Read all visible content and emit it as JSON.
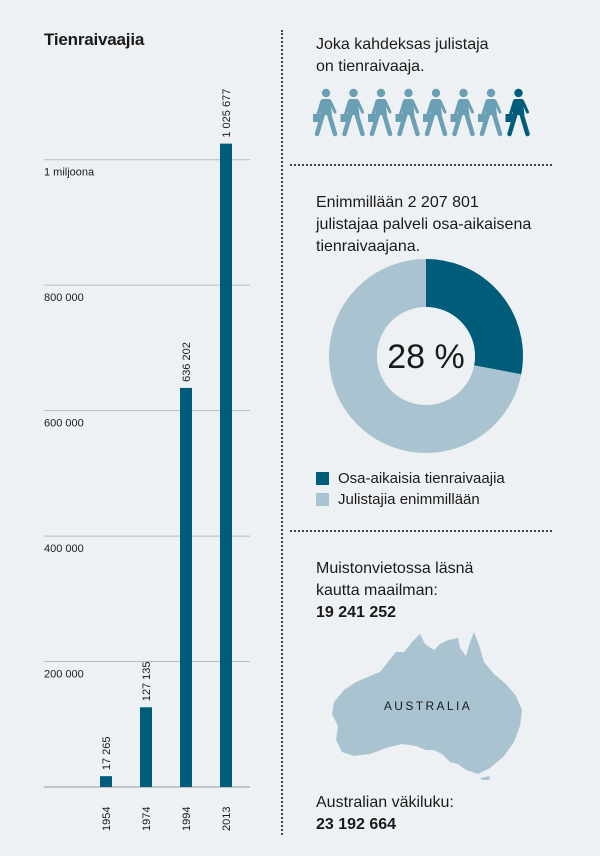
{
  "colors": {
    "bar": "#005d79",
    "part_time": "#005d79",
    "others": "#a9c4d0",
    "walker_light": "#6b9fb4",
    "walker_dark": "#005d79",
    "map": "#a9c4d0",
    "grid": "#b5bcc0"
  },
  "chart_data": {
    "type": "bar",
    "title": "Tienraivaajia",
    "categories": [
      "1954",
      "1974",
      "1994",
      "2013"
    ],
    "values": [
      17265,
      127135,
      636202,
      1025677
    ],
    "value_labels": [
      "17 265",
      "127 135",
      "636 202",
      "1 025 677"
    ],
    "ylim": [
      0,
      1100000
    ],
    "yticks": [
      200000,
      400000,
      600000,
      800000,
      1000000
    ],
    "ytick_labels": [
      "200 000",
      "400 000",
      "600 000",
      "800 000",
      "1 miljoona"
    ],
    "grid": true,
    "xlabel": "",
    "ylabel": ""
  },
  "pioneer_ratio": {
    "text_line1": "Joka kahdeksas julistaja",
    "text_line2": "on tienraivaaja.",
    "total_figures": 8,
    "highlighted_figures": 1,
    "icon": "walking-person-with-briefcase-icon"
  },
  "donut": {
    "text_line1": "Enimmillään 2 207 801",
    "text_line2": "julistajaa palveli osa-aikaisena",
    "text_line3": "tienraivaajana.",
    "percent": 28,
    "center_label": "28 %",
    "legend": [
      {
        "label": "Osa-aikaisia tienraivaajia",
        "color": "#005d79"
      },
      {
        "label": "Julistajia enimmillään",
        "color": "#a9c4d0"
      }
    ]
  },
  "memorial": {
    "text_line1": "Muistonvietossa läsnä",
    "text_line2": "kautta maailman:",
    "attendance": "19 241 252",
    "map_label": "AUSTRALIA",
    "population_label": "Australian väkiluku:",
    "population": "23 192 664"
  }
}
